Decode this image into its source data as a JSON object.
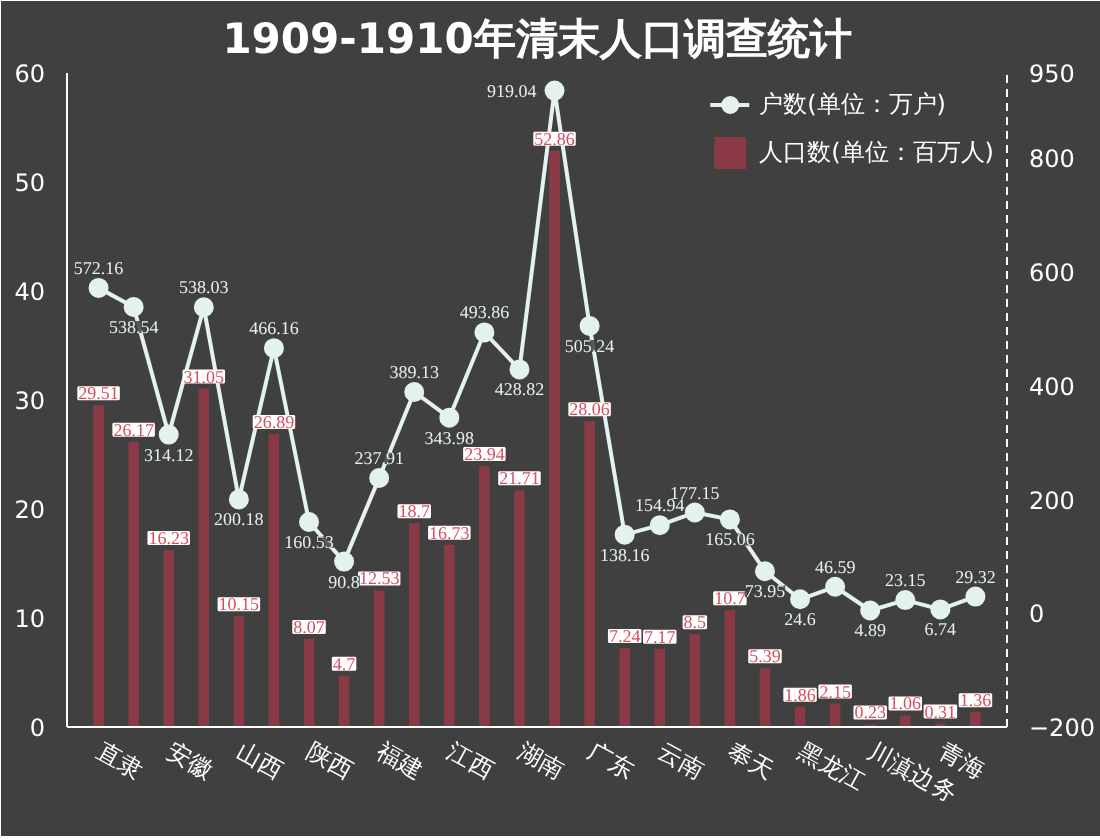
{
  "chart_data": {
    "type": "bar",
    "title": "1909-1910年清末人口调查统计",
    "categories": [
      "直隶",
      null,
      "安徽",
      null,
      "山西",
      null,
      "陕西",
      null,
      "福建",
      null,
      "江西",
      null,
      "湖南",
      null,
      "广东",
      null,
      "云南",
      null,
      "奉天",
      null,
      "黑龙江",
      null,
      "川滇边务",
      null,
      "青海",
      null
    ],
    "series": [
      {
        "name": "户数(单位：万户)",
        "type": "line",
        "axis": "y2",
        "color": "#e4f2ef",
        "values": [
          572.16,
          538.54,
          314.12,
          538.03,
          200.18,
          466.16,
          160.53,
          90.8,
          237.91,
          389.13,
          343.98,
          493.86,
          428.82,
          919.04,
          505.24,
          138.16,
          154.94,
          177.15,
          165.06,
          73.95,
          24.6,
          46.59,
          4.89,
          23.15,
          6.74,
          29.32
        ]
      },
      {
        "name": "人口数(单位：百万人)",
        "color": "#8e3a46",
        "values": [
          29.51,
          26.17,
          16.23,
          31.05,
          10.15,
          26.89,
          8.07,
          4.7,
          12.53,
          18.7,
          16.73,
          23.94,
          21.71,
          52.86,
          28.06,
          7.24,
          7.17,
          8.5,
          10.7,
          5.39,
          1.86,
          2.15,
          0.23,
          1.06,
          0.31,
          1.36
        ]
      }
    ],
    "ylim": [
      0,
      60
    ],
    "yticks": [
      0,
      10,
      20,
      30,
      40,
      50,
      60
    ],
    "y2lim": [
      -200,
      950
    ],
    "y2ticks": [
      -200,
      0,
      200,
      400,
      600,
      800,
      950
    ],
    "data_labels": true,
    "marker": "circle",
    "legend": "top right",
    "grid": false
  }
}
